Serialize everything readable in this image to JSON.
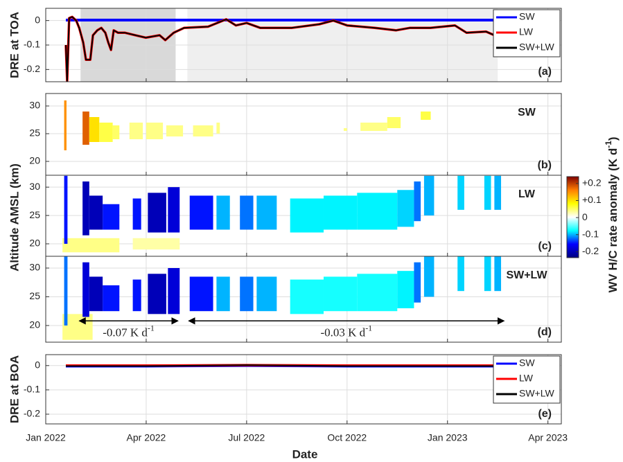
{
  "x_axis": {
    "label": "Date",
    "xlim": [
      0,
      15.4
    ],
    "xticks": [
      {
        "value": 0,
        "label": "Jan 2022"
      },
      {
        "value": 3,
        "label": "Apr 2022"
      },
      {
        "value": 6,
        "label": "Jul 2022"
      },
      {
        "value": 9,
        "label": "Oct 2022"
      },
      {
        "value": 12,
        "label": "Jan 2023"
      },
      {
        "value": 15,
        "label": "Apr 2023"
      }
    ]
  },
  "altitude_label": "Altitude AMSL (km)",
  "colorbar": {
    "label": "WV H/C rate anomaly (K d",
    "label_sup": "-1",
    "label_end": ")",
    "clim": [
      -0.235,
      0.24
    ],
    "colormap": [
      "#00007f",
      "#0000ff",
      "#00ffff",
      "#ffffff",
      "#ffff00",
      "#ff7f00",
      "#7f0000"
    ],
    "ticks": [
      {
        "value": 0.2,
        "label": "+0.2"
      },
      {
        "value": 0.1,
        "label": "+0.1"
      },
      0,
      -0.1,
      -0.2
    ]
  },
  "chart_data": [
    {
      "type": "line",
      "panel_label": "(a)",
      "ylabel": "DRE at TOA",
      "ylim": [
        -0.25,
        0.05
      ],
      "yticks": [
        0,
        -0.1,
        -0.2
      ],
      "grid": true,
      "legend": "upper right",
      "periods": [
        {
          "start": 1.04,
          "end": 3.88,
          "color": "#d9d9d9"
        },
        {
          "start": 4.23,
          "end": 13.5,
          "color": "#efefef"
        }
      ],
      "series": [
        {
          "name": "SW",
          "color": "#0000ff",
          "x": [
            0.6,
            3,
            6,
            9,
            12,
            13.5
          ],
          "values": [
            0.002,
            0.002,
            0.002,
            0.002,
            0.002,
            0.002
          ]
        },
        {
          "name": "LW",
          "color": "#ff0000",
          "x": [
            0.6,
            0.64,
            0.7,
            0.79,
            0.91,
            1.0,
            1.12,
            1.2,
            1.33,
            1.41,
            1.54,
            1.66,
            1.78,
            1.87,
            1.95,
            2.03,
            2.16,
            2.37,
            2.68,
            2.99,
            3.4,
            3.57,
            3.82,
            4.13,
            4.85,
            5.39,
            5.68,
            6.0,
            6.41,
            7.34,
            8.17,
            8.59,
            9.0,
            9.83,
            10.46,
            10.87,
            11.49,
            12.22,
            12.57,
            13.15,
            13.4,
            13.49
          ],
          "values": [
            -0.1,
            -0.25,
            0.01,
            0.015,
            0.0,
            -0.03,
            -0.09,
            -0.16,
            -0.16,
            -0.06,
            -0.04,
            -0.03,
            -0.05,
            -0.09,
            -0.12,
            -0.04,
            -0.05,
            -0.05,
            -0.06,
            -0.07,
            -0.06,
            -0.08,
            -0.05,
            -0.03,
            -0.025,
            0.005,
            -0.02,
            -0.01,
            -0.03,
            -0.03,
            -0.015,
            0.0,
            -0.02,
            -0.03,
            -0.04,
            -0.03,
            -0.03,
            -0.02,
            -0.05,
            -0.045,
            -0.06,
            -0.05
          ]
        },
        {
          "name": "SW+LW",
          "color": "#000000",
          "x": [
            0.6,
            0.64,
            0.7,
            0.79,
            0.91,
            1.0,
            1.12,
            1.2,
            1.33,
            1.41,
            1.54,
            1.66,
            1.78,
            1.87,
            1.95,
            2.03,
            2.16,
            2.37,
            2.68,
            2.99,
            3.4,
            3.57,
            3.82,
            4.13,
            4.85,
            5.39,
            5.68,
            6.0,
            6.41,
            7.34,
            8.17,
            8.59,
            9.0,
            9.83,
            10.46,
            10.87,
            11.49,
            12.22,
            12.57,
            13.15,
            13.4,
            13.49
          ],
          "values": [
            -0.1,
            -0.25,
            0.01,
            0.015,
            0.0,
            -0.03,
            -0.09,
            -0.16,
            -0.16,
            -0.06,
            -0.04,
            -0.03,
            -0.05,
            -0.09,
            -0.12,
            -0.04,
            -0.05,
            -0.05,
            -0.06,
            -0.07,
            -0.06,
            -0.08,
            -0.05,
            -0.03,
            -0.025,
            0.005,
            -0.02,
            -0.01,
            -0.03,
            -0.03,
            -0.015,
            0.0,
            -0.02,
            -0.03,
            -0.04,
            -0.03,
            -0.03,
            -0.02,
            -0.05,
            -0.045,
            -0.06,
            -0.05
          ]
        }
      ]
    },
    {
      "type": "heatmap",
      "panel_label": "(b)",
      "title": "SW",
      "ylim": [
        17.5,
        32.25
      ],
      "yticks": [
        20,
        25,
        30
      ],
      "blocks": [
        {
          "x": [
            0.55,
            0.62
          ],
          "alt": [
            22,
            31
          ],
          "value": 0.15
        },
        {
          "x": [
            1.1,
            1.3
          ],
          "alt": [
            23,
            29
          ],
          "value": 0.18
        },
        {
          "x": [
            1.3,
            1.6
          ],
          "alt": [
            23.5,
            28
          ],
          "value": 0.1
        },
        {
          "x": [
            1.6,
            2.0
          ],
          "alt": [
            23.5,
            27
          ],
          "value": 0.06
        },
        {
          "x": [
            2.0,
            2.2
          ],
          "alt": [
            24,
            26.5
          ],
          "value": 0.05
        },
        {
          "x": [
            2.5,
            2.9
          ],
          "alt": [
            24,
            27
          ],
          "value": 0.04
        },
        {
          "x": [
            3.0,
            3.5
          ],
          "alt": [
            24,
            27
          ],
          "value": 0.04
        },
        {
          "x": [
            3.6,
            4.1
          ],
          "alt": [
            24.5,
            26.5
          ],
          "value": 0.04
        },
        {
          "x": [
            4.4,
            5.0
          ],
          "alt": [
            24.5,
            26.5
          ],
          "value": 0.04
        },
        {
          "x": [
            5.1,
            5.2
          ],
          "alt": [
            25,
            27
          ],
          "value": 0.04
        },
        {
          "x": [
            8.9,
            9.0
          ],
          "alt": [
            25.5,
            26
          ],
          "value": 0.04
        },
        {
          "x": [
            9.4,
            10.2
          ],
          "alt": [
            25.5,
            27
          ],
          "value": 0.04
        },
        {
          "x": [
            10.2,
            10.6
          ],
          "alt": [
            26,
            28
          ],
          "value": 0.05
        },
        {
          "x": [
            11.2,
            11.5
          ],
          "alt": [
            27.5,
            29
          ],
          "value": 0.06
        }
      ]
    },
    {
      "type": "heatmap",
      "panel_label": "(c)",
      "title": "LW",
      "ylim": [
        17.8,
        32.1
      ],
      "yticks": [
        20,
        25,
        30
      ],
      "blocks": [
        {
          "x": [
            0.5,
            2.2
          ],
          "alt": [
            18.5,
            21
          ],
          "value": 0.04
        },
        {
          "x": [
            2.6,
            4.0
          ],
          "alt": [
            19,
            21
          ],
          "value": 0.03
        },
        {
          "x": [
            0.55,
            0.65
          ],
          "alt": [
            20,
            32
          ],
          "value": -0.15
        },
        {
          "x": [
            1.1,
            1.3
          ],
          "alt": [
            21.5,
            31
          ],
          "value": -0.2
        },
        {
          "x": [
            1.3,
            1.7
          ],
          "alt": [
            22.5,
            28.5
          ],
          "value": -0.2
        },
        {
          "x": [
            1.7,
            2.2
          ],
          "alt": [
            22.5,
            27
          ],
          "value": -0.15
        },
        {
          "x": [
            2.6,
            2.85
          ],
          "alt": [
            22.5,
            28
          ],
          "value": -0.15
        },
        {
          "x": [
            3.05,
            3.6
          ],
          "alt": [
            22,
            29
          ],
          "value": -0.2
        },
        {
          "x": [
            3.65,
            4.0
          ],
          "alt": [
            22,
            30
          ],
          "value": -0.18
        },
        {
          "x": [
            4.3,
            5.0
          ],
          "alt": [
            22.5,
            28.5
          ],
          "value": -0.15
        },
        {
          "x": [
            5.1,
            5.5
          ],
          "alt": [
            22.5,
            28.5
          ],
          "value": -0.1
        },
        {
          "x": [
            5.8,
            6.2
          ],
          "alt": [
            22.5,
            28.5
          ],
          "value": -0.12
        },
        {
          "x": [
            6.3,
            6.9
          ],
          "alt": [
            22.5,
            28.5
          ],
          "value": -0.1
        },
        {
          "x": [
            7.3,
            8.3
          ],
          "alt": [
            22,
            28
          ],
          "value": -0.08
        },
        {
          "x": [
            8.3,
            9.3
          ],
          "alt": [
            22.5,
            28.5
          ],
          "value": -0.08
        },
        {
          "x": [
            9.3,
            10.5
          ],
          "alt": [
            22.5,
            29
          ],
          "value": -0.08
        },
        {
          "x": [
            10.5,
            11.0
          ],
          "alt": [
            23,
            29.5
          ],
          "value": -0.09
        },
        {
          "x": [
            11.0,
            11.2
          ],
          "alt": [
            24,
            31
          ],
          "value": -0.12
        },
        {
          "x": [
            11.3,
            11.6
          ],
          "alt": [
            25,
            32
          ],
          "value": -0.1
        },
        {
          "x": [
            12.3,
            12.5
          ],
          "alt": [
            26,
            32
          ],
          "value": -0.09
        },
        {
          "x": [
            13.1,
            13.3
          ],
          "alt": [
            26,
            32
          ],
          "value": -0.09
        },
        {
          "x": [
            13.4,
            13.6
          ],
          "alt": [
            26,
            32
          ],
          "value": -0.1
        }
      ]
    },
    {
      "type": "heatmap",
      "panel_label": "(d)",
      "title": "SW+LW",
      "ylim": [
        17.1,
        32.05
      ],
      "yticks": [
        20,
        25,
        30
      ],
      "blocks": [
        {
          "x": [
            0.5,
            1.4
          ],
          "alt": [
            17.5,
            22
          ],
          "value": 0.04
        },
        {
          "x": [
            0.55,
            0.65
          ],
          "alt": [
            20,
            32
          ],
          "value": -0.12
        },
        {
          "x": [
            1.1,
            1.3
          ],
          "alt": [
            21.5,
            31
          ],
          "value": -0.18
        },
        {
          "x": [
            1.3,
            1.7
          ],
          "alt": [
            22.5,
            28.5
          ],
          "value": -0.2
        },
        {
          "x": [
            1.7,
            2.2
          ],
          "alt": [
            22.5,
            27
          ],
          "value": -0.15
        },
        {
          "x": [
            2.6,
            2.85
          ],
          "alt": [
            22.5,
            28
          ],
          "value": -0.15
        },
        {
          "x": [
            3.05,
            3.6
          ],
          "alt": [
            22,
            29
          ],
          "value": -0.2
        },
        {
          "x": [
            3.65,
            4.0
          ],
          "alt": [
            22,
            30
          ],
          "value": -0.18
        },
        {
          "x": [
            4.3,
            5.0
          ],
          "alt": [
            22.5,
            28.5
          ],
          "value": -0.15
        },
        {
          "x": [
            5.1,
            5.5
          ],
          "alt": [
            22.5,
            28.5
          ],
          "value": -0.1
        },
        {
          "x": [
            5.8,
            6.2
          ],
          "alt": [
            22.5,
            28.5
          ],
          "value": -0.12
        },
        {
          "x": [
            6.3,
            6.9
          ],
          "alt": [
            22.5,
            28.5
          ],
          "value": -0.1
        },
        {
          "x": [
            7.3,
            8.3
          ],
          "alt": [
            22,
            28
          ],
          "value": -0.07
        },
        {
          "x": [
            8.3,
            9.3
          ],
          "alt": [
            22.5,
            28.5
          ],
          "value": -0.07
        },
        {
          "x": [
            9.3,
            10.5
          ],
          "alt": [
            22.5,
            29
          ],
          "value": -0.07
        },
        {
          "x": [
            10.5,
            11.0
          ],
          "alt": [
            23,
            29.5
          ],
          "value": -0.08
        },
        {
          "x": [
            11.0,
            11.2
          ],
          "alt": [
            24,
            31
          ],
          "value": -0.12
        },
        {
          "x": [
            11.3,
            11.6
          ],
          "alt": [
            25,
            32
          ],
          "value": -0.1
        },
        {
          "x": [
            12.3,
            12.5
          ],
          "alt": [
            26,
            32
          ],
          "value": -0.09
        },
        {
          "x": [
            13.1,
            13.3
          ],
          "alt": [
            26,
            32
          ],
          "value": -0.09
        },
        {
          "x": [
            13.4,
            13.6
          ],
          "alt": [
            26,
            32
          ],
          "value": -0.1
        }
      ],
      "annotations": [
        {
          "x": [
            1.0,
            3.95
          ],
          "alt": 20.8,
          "text": "-0.07 K d",
          "sup": "-1"
        },
        {
          "x": [
            4.27,
            13.69
          ],
          "alt": 20.8,
          "text": "-0.03 K d",
          "sup": "-1"
        }
      ]
    },
    {
      "type": "line",
      "panel_label": "(e)",
      "ylabel": "DRE at BOA",
      "ylim": [
        -0.24,
        0.045
      ],
      "yticks": [
        0,
        -0.1,
        -0.2
      ],
      "grid": true,
      "legend": "upper right",
      "series": [
        {
          "name": "SW",
          "color": "#0000ff",
          "x": [
            0.6,
            3,
            6,
            9,
            12,
            13.5
          ],
          "values": [
            -0.002,
            -0.002,
            0.0,
            -0.002,
            -0.002,
            -0.002
          ]
        },
        {
          "name": "LW",
          "color": "#ff0000",
          "x": [
            0.6,
            3,
            6,
            9,
            12,
            13.5
          ],
          "values": [
            0.0,
            0.0,
            0.002,
            0.0,
            0.0,
            0.0
          ]
        },
        {
          "name": "SW+LW",
          "color": "#000000",
          "x": [
            0.6,
            3,
            6,
            9,
            12,
            13.5
          ],
          "values": [
            -0.002,
            -0.002,
            0.002,
            -0.002,
            -0.002,
            -0.002
          ]
        }
      ]
    }
  ]
}
